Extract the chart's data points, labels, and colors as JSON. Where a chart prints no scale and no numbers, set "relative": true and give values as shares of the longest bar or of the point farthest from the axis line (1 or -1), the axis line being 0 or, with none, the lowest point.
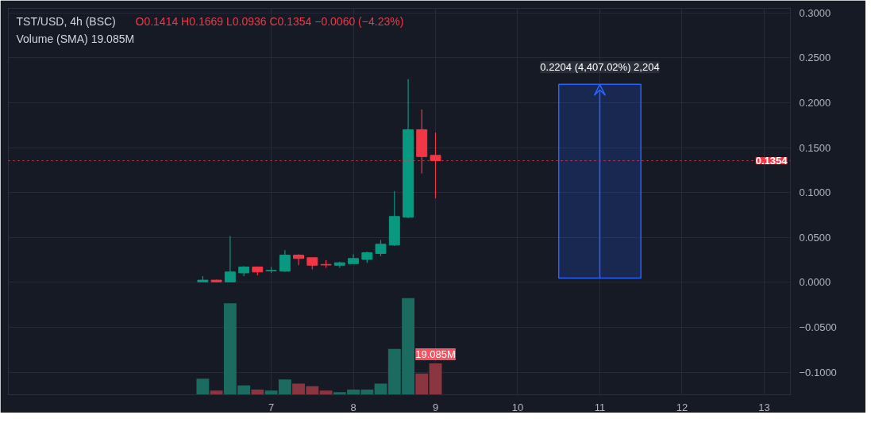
{
  "chart_data": [
    {
      "type": "candlestick",
      "title": "TST/USD, 4h (BSC)",
      "annotations": [
        "O0.1414 H0.1669 L0.0936 C0.1354 −0.0060 (−4.23%)",
        "Volume (SMA) 19.085M"
      ],
      "x": [
        6.167,
        6.333,
        6.5,
        6.667,
        6.833,
        7,
        7.167,
        7.333,
        7.5,
        7.667,
        7.833,
        8,
        8.167,
        8.333,
        8.5,
        8.667,
        8.833,
        9
      ],
      "ohlc": [
        [
          0.0005,
          0.0069,
          0.0003,
          0.0025
        ],
        [
          0.0025,
          0.0031,
          0.0003,
          0.0005
        ],
        [
          0.0005,
          0.0519,
          0.0003,
          0.0116
        ],
        [
          0.0106,
          0.0181,
          0.0069,
          0.0172
        ],
        [
          0.0172,
          0.0172,
          0.0078,
          0.0116
        ],
        [
          0.0128,
          0.0172,
          0.0106,
          0.0134
        ],
        [
          0.0125,
          0.0359,
          0.0116,
          0.0303
        ],
        [
          0.0303,
          0.0313,
          0.0191,
          0.0266
        ],
        [
          0.0275,
          0.0275,
          0.0144,
          0.0191
        ],
        [
          0.02,
          0.0247,
          0.0163,
          0.0194
        ],
        [
          0.0191,
          0.0228,
          0.0163,
          0.0219
        ],
        [
          0.0209,
          0.0313,
          0.0209,
          0.0266
        ],
        [
          0.0256,
          0.0341,
          0.0219,
          0.0331
        ],
        [
          0.0322,
          0.0472,
          0.0294,
          0.0425
        ],
        [
          0.0416,
          0.1016,
          0.0406,
          0.0734
        ],
        [
          0.0725,
          0.2263,
          0.0716,
          0.17
        ],
        [
          0.17,
          0.1925,
          0.1213,
          0.14
        ],
        [
          0.1414,
          0.1669,
          0.0936,
          0.1354
        ]
      ],
      "colors": [
        "#089981",
        "#f23645",
        "#089981",
        "#089981",
        "#f23645",
        "#089981",
        "#089981",
        "#f23645",
        "#f23645",
        "#f23645",
        "#089981",
        "#089981",
        "#089981",
        "#089981",
        "#089981",
        "#089981",
        "#f23645",
        "#f23645"
      ],
      "xlim": [
        3.8,
        13.32
      ],
      "xticks": [
        7,
        8,
        9,
        10,
        11,
        12,
        13
      ],
      "ylim": [
        -0.125,
        0.305
      ],
      "yticks": [
        {
          "value": -0.1,
          "label": "−0.1000"
        },
        {
          "value": -0.05,
          "label": "−0.0500"
        },
        {
          "value": 0,
          "label": "0.0000"
        },
        {
          "value": 0.05,
          "label": "0.0500"
        },
        {
          "value": 0.1,
          "label": "0.1000"
        },
        {
          "value": 0.15,
          "label": "0.1500"
        },
        {
          "value": 0.2,
          "label": "0.2000"
        },
        {
          "value": 0.25,
          "label": "0.2500"
        },
        {
          "value": 0.3,
          "label": "0.3000"
        }
      ],
      "ref_lines": [
        {
          "axis": "y",
          "value": 0.1354,
          "label": "0.1354",
          "color": "#f23645",
          "line_style": "dotted"
        }
      ],
      "bands": [
        {
          "axis": "y",
          "from": 0.0049,
          "to": 0.2204,
          "label": "0.2204 (4,407.02%) 2,204",
          "color": "#2962ff"
        }
      ],
      "grid": true
    },
    {
      "type": "bar",
      "relative": true,
      "categories": [
        null,
        null,
        null,
        null,
        null,
        null,
        null,
        null,
        null,
        null,
        null,
        null,
        null,
        null,
        null,
        null,
        null,
        null
      ],
      "values": [
        0.167,
        0.044,
        0.947,
        0.097,
        0.053,
        0.044,
        0.158,
        0.114,
        0.088,
        0.044,
        0.026,
        0.053,
        0.053,
        0.114,
        0.474,
        1,
        0.219,
        0.325
      ],
      "colors": [
        "#1c6b60",
        "#8a3540",
        "#1c6b60",
        "#1c6b60",
        "#8a3540",
        "#1c6b60",
        "#1c6b60",
        "#8a3540",
        "#8a3540",
        "#8a3540",
        "#1c6b60",
        "#1c6b60",
        "#1c6b60",
        "#1c6b60",
        "#1c6b60",
        "#1c6b60",
        "#8a3540",
        "#8a3540"
      ],
      "annotations": [
        "19.085M"
      ]
    }
  ]
}
